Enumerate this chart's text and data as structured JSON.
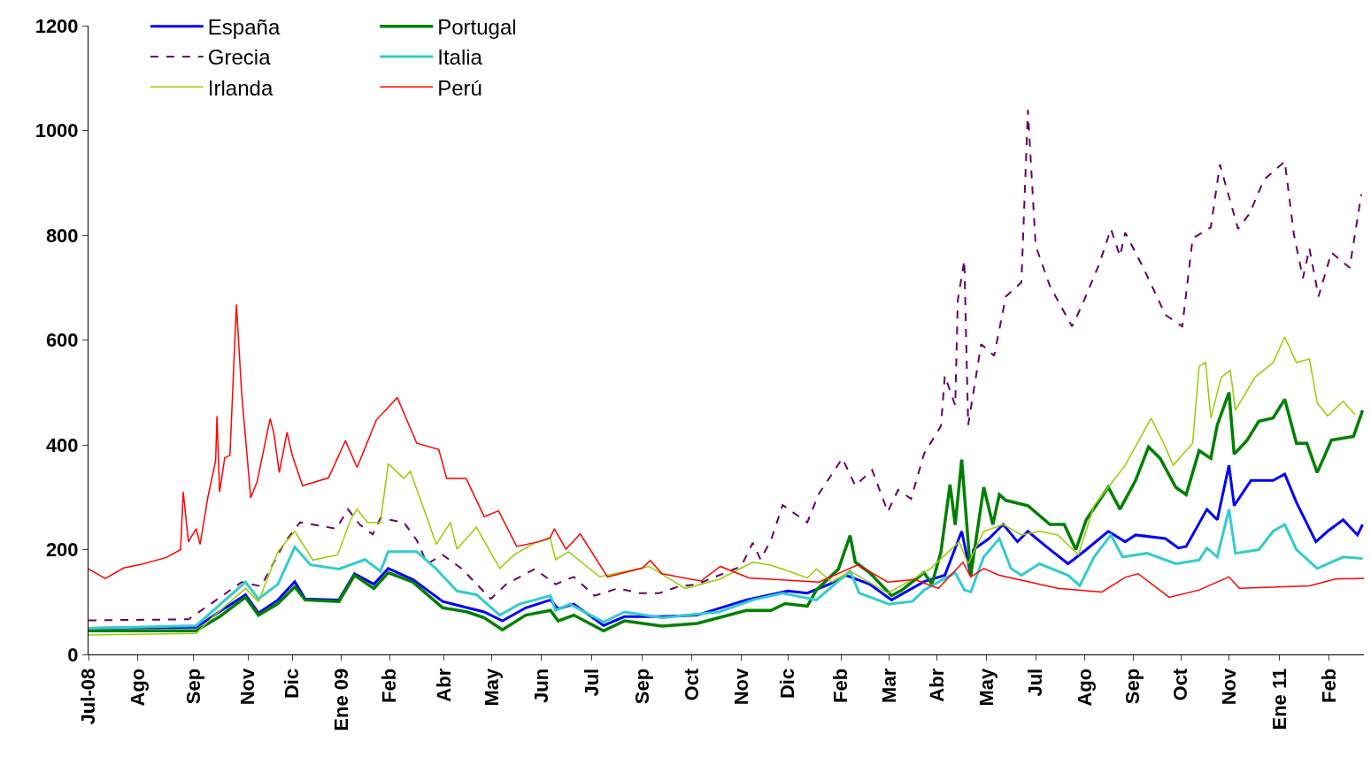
{
  "chart_data": {
    "type": "line",
    "ylim": [
      0,
      1200
    ],
    "yticks": [
      0,
      200,
      400,
      600,
      800,
      1000,
      1200
    ],
    "xlim": [
      "2008-07-01",
      "2011-03-11"
    ],
    "xticks": [
      {
        "value": "2008-07-01",
        "label": "Jul-08"
      },
      {
        "value": "2008-08-08",
        "label": "Ago"
      },
      {
        "value": "2008-09-20",
        "label": "Sep"
      },
      {
        "value": "2008-11-01",
        "label": "Nov"
      },
      {
        "value": "2008-12-05",
        "label": "Dic"
      },
      {
        "value": "2009-01-12",
        "label": "Ene 09"
      },
      {
        "value": "2009-02-18",
        "label": "Feb"
      },
      {
        "value": "2009-04-01",
        "label": "Abr"
      },
      {
        "value": "2009-05-08",
        "label": "May"
      },
      {
        "value": "2009-06-15",
        "label": "Jun"
      },
      {
        "value": "2009-07-24",
        "label": "Jul"
      },
      {
        "value": "2009-09-01",
        "label": "Sep"
      },
      {
        "value": "2009-10-09",
        "label": "Oct"
      },
      {
        "value": "2009-11-16",
        "label": "Nov"
      },
      {
        "value": "2009-12-22",
        "label": "Dic"
      },
      {
        "value": "2010-02-01",
        "label": "Feb"
      },
      {
        "value": "2010-03-10",
        "label": "Mar"
      },
      {
        "value": "2010-04-16",
        "label": "Abr"
      },
      {
        "value": "2010-05-24",
        "label": "May"
      },
      {
        "value": "2010-07-01",
        "label": "Jul"
      },
      {
        "value": "2010-08-08",
        "label": "Ago"
      },
      {
        "value": "2010-09-14",
        "label": "Sep"
      },
      {
        "value": "2010-10-21",
        "label": "Oct"
      },
      {
        "value": "2010-11-27",
        "label": "Nov"
      },
      {
        "value": "2011-01-05",
        "label": "Ene 11"
      },
      {
        "value": "2011-02-12",
        "label": "Feb"
      }
    ],
    "legend": "top left",
    "marker": "none",
    "series": [
      {
        "name": "España",
        "color": "#0000ff",
        "line_style": "solid",
        "x": [
          "2008-07-01",
          "2008-09-22",
          "2008-10-30",
          "2008-11-09",
          "2008-11-24",
          "2008-12-07",
          "2008-12-15",
          "2009-01-10",
          "2009-01-22",
          "2009-02-06",
          "2009-02-17",
          "2009-03-08",
          "2009-03-31",
          "2009-04-19",
          "2009-05-02",
          "2009-05-16",
          "2009-06-03",
          "2009-06-22",
          "2009-06-28",
          "2009-07-10",
          "2009-08-02",
          "2009-08-18",
          "2009-09-16",
          "2009-10-13",
          "2009-11-20",
          "2009-12-22",
          "2010-01-06",
          "2010-01-23",
          "2010-02-05",
          "2010-02-23",
          "2010-03-12",
          "2010-04-06",
          "2010-04-22",
          "2010-05-05",
          "2010-05-12",
          "2010-05-14",
          "2010-05-26",
          "2010-06-06",
          "2010-06-17",
          "2010-06-25",
          "2010-07-09",
          "2010-07-26",
          "2010-08-09",
          "2010-08-26",
          "2010-09-08",
          "2010-09-16",
          "2010-10-09",
          "2010-10-19",
          "2010-10-25",
          "2010-11-10",
          "2010-11-18",
          "2010-11-27",
          "2010-12-01",
          "2010-12-14",
          "2010-12-31",
          "2011-01-09",
          "2011-01-18",
          "2011-02-02",
          "2011-02-11",
          "2011-02-23",
          "2011-03-06",
          "2011-03-10"
        ],
        "values": [
          50,
          52,
          114,
          79,
          104,
          139,
          106,
          104,
          154,
          134,
          164,
          143,
          101,
          89,
          81,
          64,
          89,
          104,
          87,
          96,
          55,
          72,
          72,
          75,
          104,
          121,
          117,
          134,
          151,
          134,
          104,
          139,
          151,
          235,
          151,
          200,
          221,
          248,
          215,
          235,
          206,
          173,
          200,
          235,
          215,
          228,
          221,
          203,
          206,
          277,
          257,
          361,
          284,
          332,
          332,
          344,
          290,
          215,
          235,
          257,
          228,
          248
        ]
      },
      {
        "name": "Portugal",
        "color": "#008000",
        "line_style": "solid",
        "x": [
          "2008-07-01",
          "2008-09-22",
          "2008-10-10",
          "2008-10-30",
          "2008-11-09",
          "2008-11-24",
          "2008-12-07",
          "2008-12-15",
          "2009-01-10",
          "2009-01-22",
          "2009-02-06",
          "2009-02-17",
          "2009-03-08",
          "2009-03-31",
          "2009-04-19",
          "2009-05-02",
          "2009-05-16",
          "2009-06-03",
          "2009-06-22",
          "2009-06-28",
          "2009-07-10",
          "2009-08-02",
          "2009-08-18",
          "2009-09-16",
          "2009-10-13",
          "2009-11-20",
          "2009-12-09",
          "2009-12-20",
          "2010-01-06",
          "2010-01-13",
          "2010-01-30",
          "2010-02-08",
          "2010-02-12",
          "2010-02-23",
          "2010-03-12",
          "2010-03-20",
          "2010-04-06",
          "2010-04-12",
          "2010-04-19",
          "2010-04-26",
          "2010-04-30",
          "2010-05-05",
          "2010-05-12",
          "2010-05-22",
          "2010-05-29",
          "2010-06-03",
          "2010-06-08",
          "2010-06-25",
          "2010-07-12",
          "2010-07-23",
          "2010-08-01",
          "2010-08-09",
          "2010-08-26",
          "2010-09-04",
          "2010-09-16",
          "2010-09-26",
          "2010-10-05",
          "2010-10-17",
          "2010-10-25",
          "2010-11-04",
          "2010-11-13",
          "2010-11-18",
          "2010-11-27",
          "2010-12-01",
          "2010-12-11",
          "2010-12-20",
          "2010-12-31",
          "2011-01-09",
          "2011-01-18",
          "2011-01-26",
          "2011-02-03",
          "2011-02-14",
          "2011-03-03",
          "2011-03-10"
        ],
        "values": [
          45,
          45,
          72,
          109,
          75,
          97,
          129,
          104,
          101,
          151,
          126,
          156,
          138,
          89,
          81,
          70,
          47,
          75,
          84,
          64,
          75,
          45,
          64,
          54,
          59,
          84,
          84,
          97,
          92,
          123,
          163,
          227,
          176,
          156,
          112,
          123,
          156,
          134,
          196,
          324,
          247,
          372,
          151,
          319,
          248,
          305,
          294,
          284,
          248,
          248,
          200,
          257,
          319,
          277,
          332,
          396,
          374,
          319,
          305,
          389,
          374,
          438,
          500,
          382,
          409,
          445,
          451,
          487,
          403,
          403,
          347,
          409,
          416,
          466
        ]
      },
      {
        "name": "Grecia",
        "color": "#660066",
        "line_style": "dashed",
        "x": [
          "2008-07-01",
          "2008-09-16",
          "2008-10-03",
          "2008-10-27",
          "2008-11-11",
          "2008-11-29",
          "2008-12-11",
          "2009-01-08",
          "2009-01-17",
          "2009-01-26",
          "2009-02-05",
          "2009-02-11",
          "2009-03-01",
          "2009-03-11",
          "2009-03-19",
          "2009-03-31",
          "2009-04-15",
          "2009-05-07",
          "2009-05-19",
          "2009-06-10",
          "2009-06-26",
          "2009-07-10",
          "2009-07-26",
          "2009-08-13",
          "2009-08-30",
          "2009-09-14",
          "2009-09-28",
          "2009-10-13",
          "2009-10-30",
          "2009-11-16",
          "2009-11-25",
          "2009-12-01",
          "2009-12-09",
          "2009-12-18",
          "2010-01-06",
          "2010-01-15",
          "2010-02-02",
          "2010-02-12",
          "2010-02-25",
          "2010-03-09",
          "2010-03-17",
          "2010-03-27",
          "2010-04-06",
          "2010-04-19",
          "2010-04-22",
          "2010-04-30",
          "2010-05-02",
          "2010-05-07",
          "2010-05-10",
          "2010-05-20",
          "2010-05-30",
          "2010-06-08",
          "2010-06-20",
          "2010-06-25",
          "2010-07-01",
          "2010-07-12",
          "2010-07-29",
          "2010-08-06",
          "2010-08-19",
          "2010-08-28",
          "2010-09-04",
          "2010-09-08",
          "2010-09-22",
          "2010-10-09",
          "2010-10-22",
          "2010-10-30",
          "2010-11-13",
          "2010-11-20",
          "2010-12-04",
          "2010-12-13",
          "2010-12-24",
          "2011-01-09",
          "2011-01-16",
          "2011-01-23",
          "2011-01-28",
          "2011-02-04",
          "2011-02-14",
          "2011-02-28",
          "2011-03-09"
        ],
        "values": [
          65,
          67,
          96,
          138,
          130,
          213,
          252,
          240,
          277,
          248,
          229,
          260,
          252,
          218,
          173,
          190,
          163,
          106,
          134,
          163,
          134,
          148,
          112,
          126,
          117,
          117,
          129,
          134,
          151,
          168,
          213,
          181,
          218,
          285,
          252,
          307,
          374,
          322,
          352,
          272,
          314,
          297,
          383,
          436,
          532,
          475,
          676,
          752,
          438,
          592,
          570,
          683,
          710,
          1039,
          780,
          703,
          626,
          668,
          745,
          812,
          760,
          805,
          738,
          648,
          626,
          794,
          815,
          935,
          812,
          842,
          906,
          941,
          802,
          718,
          775,
          683,
          767,
          738,
          878
        ]
      },
      {
        "name": "Italia",
        "color": "#33cccc",
        "line_style": "solid",
        "x": [
          "2008-07-01",
          "2008-09-22",
          "2008-10-30",
          "2008-11-09",
          "2008-11-24",
          "2008-12-07",
          "2008-12-19",
          "2009-01-10",
          "2009-01-30",
          "2009-02-11",
          "2009-02-17",
          "2009-03-11",
          "2009-03-26",
          "2009-04-11",
          "2009-04-26",
          "2009-05-14",
          "2009-05-29",
          "2009-06-22",
          "2009-06-26",
          "2009-07-07",
          "2009-08-02",
          "2009-08-18",
          "2009-09-16",
          "2009-10-30",
          "2009-11-25",
          "2009-12-18",
          "2010-01-13",
          "2010-02-08",
          "2010-02-15",
          "2010-03-10",
          "2010-03-28",
          "2010-04-06",
          "2010-04-30",
          "2010-05-07",
          "2010-05-12",
          "2010-05-22",
          "2010-06-03",
          "2010-06-12",
          "2010-06-20",
          "2010-07-04",
          "2010-07-26",
          "2010-08-04",
          "2010-08-15",
          "2010-08-28",
          "2010-09-06",
          "2010-09-25",
          "2010-10-17",
          "2010-11-04",
          "2010-11-10",
          "2010-11-18",
          "2010-11-27",
          "2010-12-02",
          "2010-12-20",
          "2010-12-31",
          "2011-01-09",
          "2011-01-18",
          "2011-02-03",
          "2011-02-23",
          "2011-03-10"
        ],
        "values": [
          50,
          55,
          138,
          106,
          134,
          205,
          171,
          163,
          181,
          159,
          196,
          196,
          163,
          121,
          114,
          75,
          96,
          112,
          84,
          96,
          62,
          81,
          70,
          81,
          104,
          117,
          104,
          159,
          117,
          96,
          101,
          123,
          156,
          123,
          119,
          186,
          221,
          164,
          151,
          173,
          151,
          131,
          186,
          228,
          186,
          193,
          173,
          180,
          203,
          186,
          277,
          193,
          200,
          235,
          248,
          200,
          164,
          186,
          183
        ]
      },
      {
        "name": "Irlanda",
        "color": "#99cc00",
        "line_style": "solid",
        "x": [
          "2008-07-01",
          "2008-09-22",
          "2008-10-05",
          "2008-10-30",
          "2008-11-09",
          "2008-11-24",
          "2008-12-07",
          "2008-12-21",
          "2009-01-09",
          "2009-01-19",
          "2009-01-24",
          "2009-02-01",
          "2009-02-11",
          "2009-02-17",
          "2009-03-01",
          "2009-03-06",
          "2009-03-19",
          "2009-03-26",
          "2009-04-06",
          "2009-04-11",
          "2009-04-26",
          "2009-05-14",
          "2009-05-25",
          "2009-06-10",
          "2009-06-22",
          "2009-06-26",
          "2009-07-06",
          "2009-07-30",
          "2009-09-06",
          "2009-10-04",
          "2009-10-30",
          "2009-11-25",
          "2009-12-08",
          "2009-12-18",
          "2010-01-06",
          "2010-01-13",
          "2010-01-25",
          "2010-02-08",
          "2010-03-09",
          "2010-03-28",
          "2010-04-11",
          "2010-05-03",
          "2010-05-10",
          "2010-05-22",
          "2010-06-06",
          "2010-06-20",
          "2010-07-04",
          "2010-07-18",
          "2010-08-03",
          "2010-08-15",
          "2010-08-26",
          "2010-09-08",
          "2010-09-28",
          "2010-10-09",
          "2010-10-15",
          "2010-10-30",
          "2010-11-04",
          "2010-11-09",
          "2010-11-13",
          "2010-11-21",
          "2010-11-28",
          "2010-12-02",
          "2010-12-17",
          "2010-12-31",
          "2011-01-09",
          "2011-01-18",
          "2011-01-28",
          "2011-02-03",
          "2011-02-11",
          "2011-02-23",
          "2011-03-04"
        ],
        "values": [
          37,
          40,
          72,
          126,
          101,
          196,
          235,
          180,
          190,
          257,
          277,
          252,
          252,
          364,
          336,
          349,
          260,
          210,
          252,
          201,
          243,
          164,
          190,
          213,
          221,
          181,
          196,
          148,
          168,
          126,
          143,
          176,
          171,
          163,
          146,
          163,
          138,
          159,
          117,
          143,
          164,
          215,
          173,
          235,
          248,
          228,
          235,
          228,
          190,
          284,
          319,
          361,
          451,
          396,
          361,
          403,
          550,
          557,
          451,
          529,
          542,
          466,
          529,
          557,
          606,
          557,
          564,
          480,
          455,
          483,
          458
        ]
      },
      {
        "name": "Perú",
        "color": "#ff0000",
        "line_style": "solid",
        "x": [
          "2008-07-01",
          "2008-07-14",
          "2008-07-28",
          "2008-08-11",
          "2008-08-30",
          "2008-09-10",
          "2008-09-12",
          "2008-09-16",
          "2008-09-22",
          "2008-09-25",
          "2008-10-01",
          "2008-10-07",
          "2008-10-08",
          "2008-10-10",
          "2008-10-14",
          "2008-10-18",
          "2008-10-23",
          "2008-10-27",
          "2008-11-03",
          "2008-11-08",
          "2008-11-18",
          "2008-11-21",
          "2008-11-25",
          "2008-12-01",
          "2008-12-05",
          "2008-12-13",
          "2009-01-02",
          "2009-01-15",
          "2009-01-24",
          "2009-02-08",
          "2009-02-24",
          "2009-03-11",
          "2009-03-28",
          "2009-04-03",
          "2009-04-18",
          "2009-05-02",
          "2009-05-13",
          "2009-05-27",
          "2009-06-13",
          "2009-06-22",
          "2009-06-25",
          "2009-07-04",
          "2009-07-15",
          "2009-08-05",
          "2009-09-01",
          "2009-09-07",
          "2009-09-16",
          "2009-10-16",
          "2009-10-31",
          "2009-11-22",
          "2010-01-15",
          "2010-02-14",
          "2010-03-09",
          "2010-03-30",
          "2010-04-17",
          "2010-05-06",
          "2010-05-12",
          "2010-05-22",
          "2010-06-03",
          "2010-07-18",
          "2010-08-21",
          "2010-09-08",
          "2010-09-18",
          "2010-10-12",
          "2010-11-04",
          "2010-11-27",
          "2010-12-05",
          "2011-01-28",
          "2011-02-17",
          "2011-03-11"
        ],
        "values": [
          163,
          145,
          165,
          172,
          185,
          200,
          310,
          215,
          240,
          210,
          300,
          370,
          455,
          310,
          375,
          380,
          668,
          500,
          299,
          330,
          450,
          420,
          347,
          424,
          380,
          322,
          337,
          408,
          357,
          448,
          490,
          403,
          391,
          336,
          336,
          263,
          274,
          206,
          215,
          223,
          240,
          201,
          230,
          148,
          165,
          179,
          154,
          140,
          168,
          146,
          138,
          171,
          138,
          143,
          126,
          176,
          148,
          164,
          151,
          126,
          119,
          147,
          154,
          109,
          123,
          148,
          126,
          131,
          144,
          145
        ]
      }
    ]
  }
}
